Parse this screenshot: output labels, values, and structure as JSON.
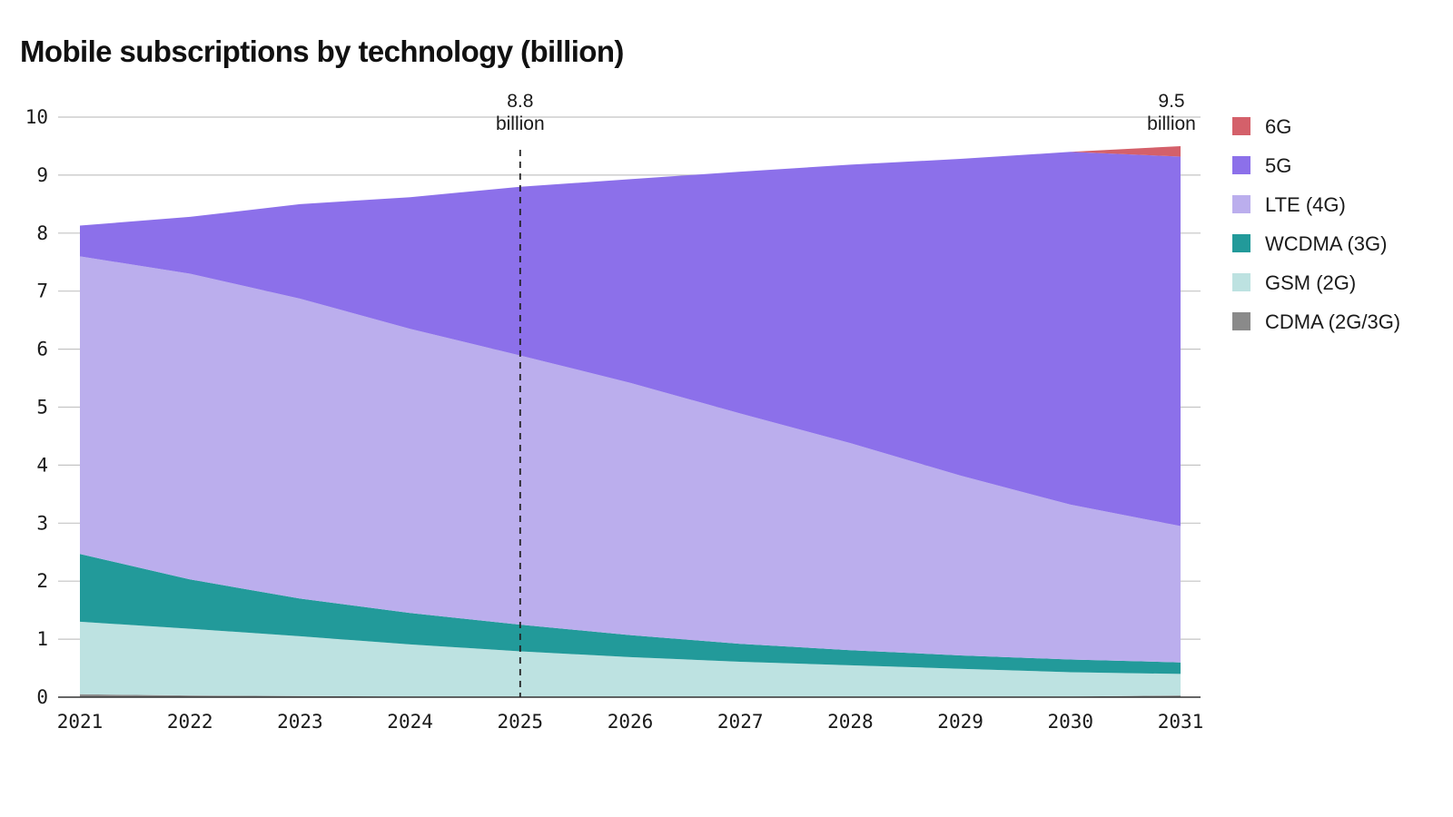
{
  "chart_data": {
    "type": "area",
    "stacked": true,
    "title": "Mobile subscriptions by technology (billion)",
    "xlabel": "",
    "ylabel": "",
    "x": [
      2021,
      2022,
      2023,
      2024,
      2025,
      2026,
      2027,
      2028,
      2029,
      2030,
      2031
    ],
    "x_tick_labels": [
      "2021",
      "2022",
      "2023",
      "2024",
      "2025",
      "2026",
      "2027",
      "2028",
      "2029",
      "2030",
      "2031"
    ],
    "ylim": [
      0,
      10
    ],
    "y_ticks": [
      0,
      1,
      2,
      3,
      4,
      5,
      6,
      7,
      8,
      9,
      10
    ],
    "y_tick_labels": [
      "0",
      "1",
      "2",
      "3",
      "4",
      "5",
      "6",
      "7",
      "8",
      "9",
      "10"
    ],
    "grid": "horizontal",
    "legend_position": "right",
    "series": [
      {
        "name": "CDMA (2G/3G)",
        "color": "#8a8a8a",
        "values": [
          0.05,
          0.03,
          0.02,
          0.01,
          0.01,
          0.01,
          0.01,
          0.01,
          0.01,
          0.01,
          0.03
        ]
      },
      {
        "name": "GSM (2G)",
        "color": "#bde2e1",
        "values": [
          1.25,
          1.15,
          1.03,
          0.9,
          0.78,
          0.68,
          0.6,
          0.54,
          0.48,
          0.42,
          0.37
        ]
      },
      {
        "name": "WCDMA (3G)",
        "color": "#229a9a",
        "values": [
          1.17,
          0.85,
          0.65,
          0.54,
          0.46,
          0.38,
          0.31,
          0.26,
          0.23,
          0.22,
          0.2
        ]
      },
      {
        "name": "LTE (4G)",
        "color": "#bbaeed",
        "values": [
          5.13,
          5.27,
          5.17,
          4.9,
          4.64,
          4.35,
          3.97,
          3.57,
          3.1,
          2.67,
          2.35
        ]
      },
      {
        "name": "5G",
        "color": "#8c70ea",
        "values": [
          0.53,
          0.98,
          1.63,
          2.27,
          2.91,
          3.51,
          4.17,
          4.8,
          5.46,
          6.08,
          6.37
        ]
      },
      {
        "name": "6G",
        "color": "#d4606a",
        "values": [
          0,
          0,
          0,
          0,
          0,
          0,
          0,
          0,
          0,
          0,
          0.18
        ]
      }
    ],
    "legend_order": [
      "6G",
      "5G",
      "LTE (4G)",
      "WCDMA (3G)",
      "GSM (2G)",
      "CDMA (2G/3G)"
    ],
    "annotations": [
      {
        "x": 2025,
        "value_label": "8.8",
        "unit_label": "billion",
        "marker": "dashed-vertical-line"
      },
      {
        "x": 2031,
        "value_label": "9.5",
        "unit_label": "billion"
      }
    ],
    "gridline_color": "#c4c4c4",
    "axis_color": "#333333"
  }
}
